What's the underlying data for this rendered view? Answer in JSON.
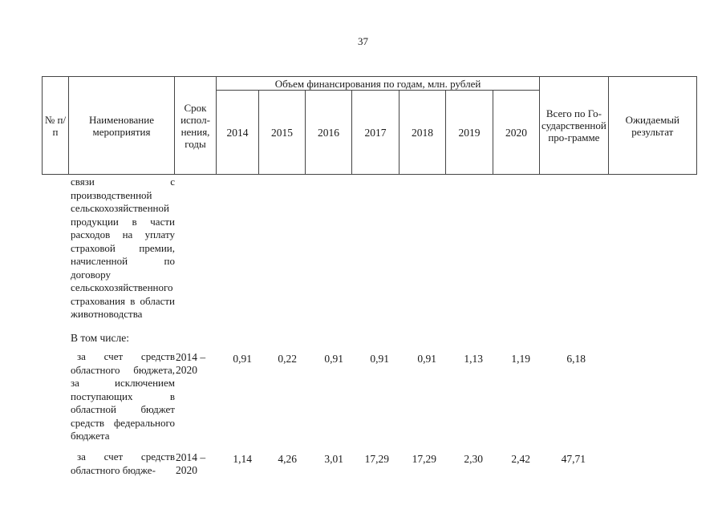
{
  "page_number": "37",
  "header": {
    "num": "№ п/п",
    "name": "Наименование мероприятия",
    "period": "Срок испол-нения, годы",
    "funding": "Объем финансирования по годам, млн. рублей",
    "years": [
      "2014",
      "2015",
      "2016",
      "2017",
      "2018",
      "2019",
      "2020"
    ],
    "total": "Всего по Го-сударственной про-грамме",
    "result": "Ожидаемый результат"
  },
  "continuation_text": "связи с производственной сельскохозяйственной продукции в части расходов на уплату страховой премии, начисленной по договору сельскохозяйственного страхования в области животноводства",
  "in_total_label": "В том числе:",
  "rows": [
    {
      "name": "за счет средств областного бюджета, за исключением поступающих в областной бюджет средств федерального бюджета",
      "period": "2014 – 2020",
      "values": [
        "0,91",
        "0,22",
        "0,91",
        "0,91",
        "0,91",
        "1,13",
        "1,19"
      ],
      "total": "6,18"
    },
    {
      "name": "за счет средств областного бюдже-",
      "period": "2014 – 2020",
      "values": [
        "1,14",
        "4,26",
        "3,01",
        "17,29",
        "17,29",
        "2,30",
        "2,42"
      ],
      "total": "47,71"
    }
  ]
}
